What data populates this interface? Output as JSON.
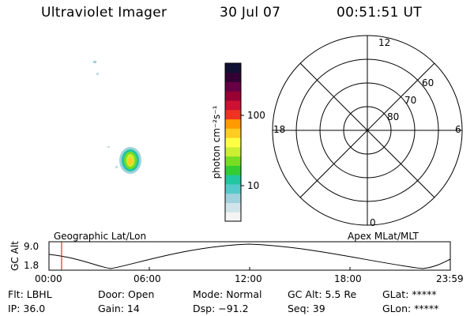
{
  "header": {
    "instrument": "Ultraviolet Imager",
    "date": "30 Jul 07",
    "time": "00:51:51 UT"
  },
  "colorbar": {
    "label": "photon cm⁻²s⁻¹",
    "ticks": [
      "100",
      "10"
    ],
    "colors": [
      "#f4f4f4",
      "#d0e4ea",
      "#9fd2dc",
      "#55c9c9",
      "#22c6a0",
      "#33cc33",
      "#77dd22",
      "#ccee33",
      "#ffff44",
      "#ffcc22",
      "#ff9a00",
      "#ee3322",
      "#cc1133",
      "#990033",
      "#660044",
      "#330033",
      "#111133"
    ]
  },
  "polar": {
    "mlt_labels": {
      "top": "12",
      "left": "18",
      "right": "6",
      "bottom": "0"
    },
    "lat_labels": [
      "60",
      "70",
      "80"
    ]
  },
  "alt_plot": {
    "left_title": "Geographic Lat/Lon",
    "right_title": "Apex MLat/MLT",
    "ylabel": "GC Alt",
    "ymax": "9.0",
    "ymin": "1.8",
    "xticks": [
      "00:00",
      "06:00",
      "12:00",
      "18:00",
      "23:59"
    ],
    "marker_color": "#dd0000"
  },
  "info": {
    "filter": "Flt: LBHL",
    "door": "Door: Open",
    "mode": "Mode: Normal",
    "gc_alt": "GC Alt: 5.5 Re",
    "glat": "GLat: *****",
    "ip": "IP: 36.0",
    "gain": "Gain: 14",
    "dsp": "Dsp: −91.2",
    "seq": "Seq: 39",
    "glon": "GLon: *****"
  }
}
